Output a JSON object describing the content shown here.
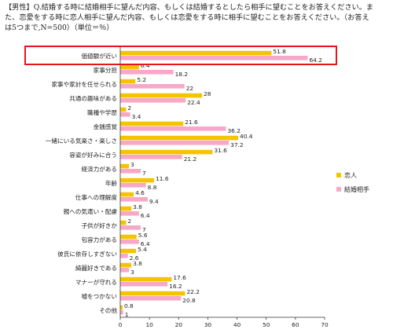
{
  "chart_data": {
    "type": "bar",
    "orientation": "horizontal",
    "title": "【男性】Q.結婚する時に結婚相手に望んだ内容、もしくは結婚するとしたら相手に望むことをお答えください。また、恋愛をする時に恋人相手に望んだ内容、もしくは恋愛をする時に相手に望むことをお答えください。（お答えは5つまで,N=500）（単位＝％）",
    "categories": [
      "価値観が近い",
      "家事分担",
      "家事や家計を任せられる",
      "共通の趣味がある",
      "職種や学歴",
      "金銭感覚",
      "一緒にいる気楽さ・楽しさ",
      "容姿が好みに合う",
      "経済力がある",
      "年齢",
      "仕事への理解度",
      "親への気遣い・配慮",
      "子供が好きか",
      "包容力がある",
      "彼氏に依存しすぎない",
      "綺麗好きである",
      "マナーが守れる",
      "嘘をつかない",
      "その他"
    ],
    "series": [
      {
        "name": "恋人",
        "color": "#f5c400",
        "values": [
          51.8,
          6.4,
          5.2,
          28,
          2,
          21.6,
          40.4,
          31.6,
          3,
          11.6,
          4.6,
          3.8,
          2,
          5.6,
          5.4,
          3.8,
          17.6,
          22.2,
          0.8
        ]
      },
      {
        "name": "結婚相手",
        "color": "#f7a8c8",
        "values": [
          64.2,
          18.2,
          22,
          22.4,
          3.4,
          36.2,
          37.2,
          21.2,
          7,
          8.8,
          9.4,
          6.4,
          7,
          6.4,
          2.6,
          3,
          16.2,
          20.8,
          1
        ]
      }
    ],
    "xlim": [
      0,
      70
    ],
    "xticks": [
      0,
      10,
      20,
      30,
      40,
      50,
      60,
      70
    ],
    "grid": false,
    "legend": "right",
    "highlight_category": "価値観が近い",
    "highlight_color": "#e8141c"
  }
}
